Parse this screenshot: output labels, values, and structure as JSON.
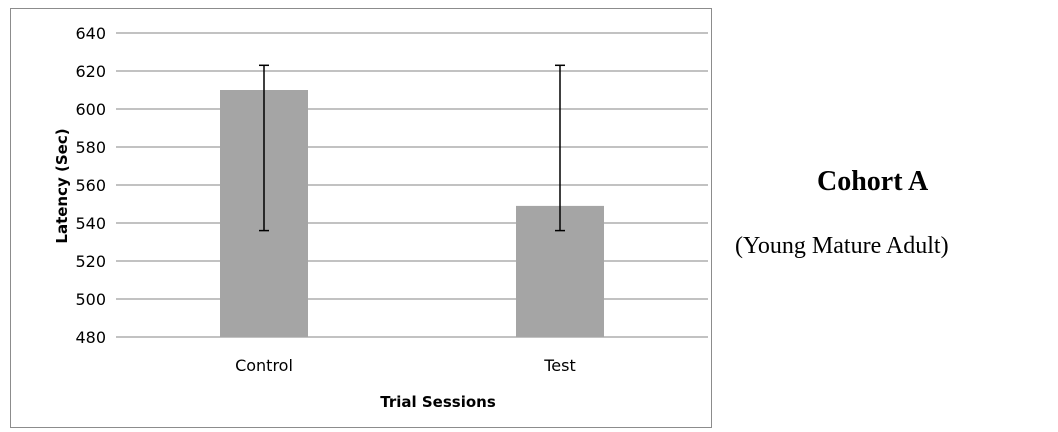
{
  "side_label": {
    "title": "Cohort A",
    "subtitle": "(Young Mature Adult)"
  },
  "chart_data": {
    "type": "bar",
    "categories": [
      "Control",
      "Test"
    ],
    "values": [
      610,
      549
    ],
    "error_bars": [
      {
        "low": 536,
        "high": 623
      },
      {
        "low": 536,
        "high": 623
      }
    ],
    "xlabel": "Trial Sessions",
    "ylabel": "Latency (Sec)",
    "ylim": [
      480,
      640
    ],
    "yticks": [
      480,
      500,
      520,
      540,
      560,
      580,
      600,
      620,
      640
    ],
    "grid": true,
    "legend": "none",
    "colors": {
      "bar": "#a5a5a5",
      "grid": "#868686",
      "error_bar": "#000000"
    }
  }
}
